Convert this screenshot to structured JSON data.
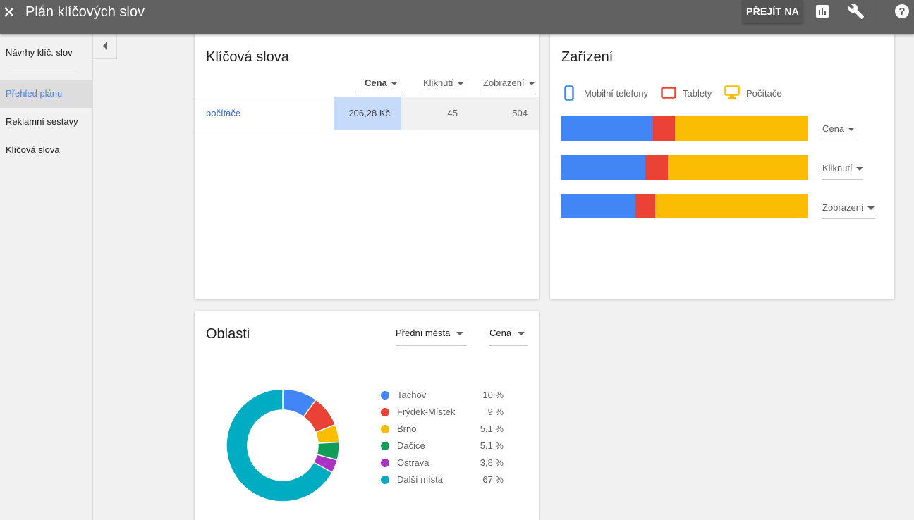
{
  "header": {
    "title": "Plán klíčových slov",
    "goto_label": "PŘEJÍT NA",
    "icons": [
      "close-icon",
      "bar-chart-icon",
      "wrench-icon",
      "help-icon"
    ]
  },
  "sidebar": {
    "items": [
      {
        "label": "Návrhy klíč. slov"
      },
      {
        "label": "Přehled plánu"
      },
      {
        "label": "Reklamní sestavy"
      },
      {
        "label": "Klíčová slova"
      }
    ],
    "active_index": 1
  },
  "keywords_card": {
    "title": "Klíčová slova",
    "columns": [
      "Cena",
      "Kliknutí",
      "Zobrazení"
    ],
    "rows": [
      {
        "keyword": "počítače",
        "cena": "206,28 Kč",
        "kliknuti": "45",
        "zobrazeni": "504"
      }
    ]
  },
  "devices_card": {
    "title": "Zařízení",
    "legend": [
      {
        "label": "Mobilní telefony",
        "color": "#4285f4",
        "icon": "mobile-phone-icon"
      },
      {
        "label": "Tablety",
        "color": "#ea4335",
        "icon": "tablet-icon"
      },
      {
        "label": "Počítače",
        "color": "#fbbc04",
        "icon": "desktop-icon"
      }
    ],
    "metrics": [
      {
        "label": "Cena"
      },
      {
        "label": "Kliknutí"
      },
      {
        "label": "Zobrazení"
      }
    ]
  },
  "regions_card": {
    "title": "Oblasti",
    "dropdown_group": "Přední města",
    "dropdown_metric": "Cena",
    "legend": [
      {
        "name": "Tachov",
        "value": "10 %",
        "color": "#4285f4"
      },
      {
        "name": "Frýdek-Místek",
        "value": "9 %",
        "color": "#ea4335"
      },
      {
        "name": "Brno",
        "value": "5,1 %",
        "color": "#fbbc04"
      },
      {
        "name": "Dačice",
        "value": "5,1 %",
        "color": "#0f9d58"
      },
      {
        "name": "Ostrava",
        "value": "3,8 %",
        "color": "#ab30c4"
      },
      {
        "name": "Další místa",
        "value": "67 %",
        "color": "#00acc1"
      }
    ]
  },
  "chart_data": [
    {
      "type": "bar",
      "stacked": true,
      "orientation": "horizontal",
      "categories": [
        "Cena",
        "Kliknutí",
        "Zobrazení"
      ],
      "series": [
        {
          "name": "Mobilní telefony",
          "values": [
            37,
            34,
            30
          ]
        },
        {
          "name": "Tablety",
          "values": [
            9,
            9,
            8
          ]
        },
        {
          "name": "Počítače",
          "values": [
            54,
            57,
            62
          ]
        }
      ]
    },
    {
      "type": "pie",
      "donut": true,
      "categories": [
        "Tachov",
        "Frýdek-Místek",
        "Brno",
        "Dačice",
        "Ostrava",
        "Další místa"
      ],
      "values": [
        10,
        9,
        5.1,
        5.1,
        3.8,
        67
      ]
    }
  ]
}
